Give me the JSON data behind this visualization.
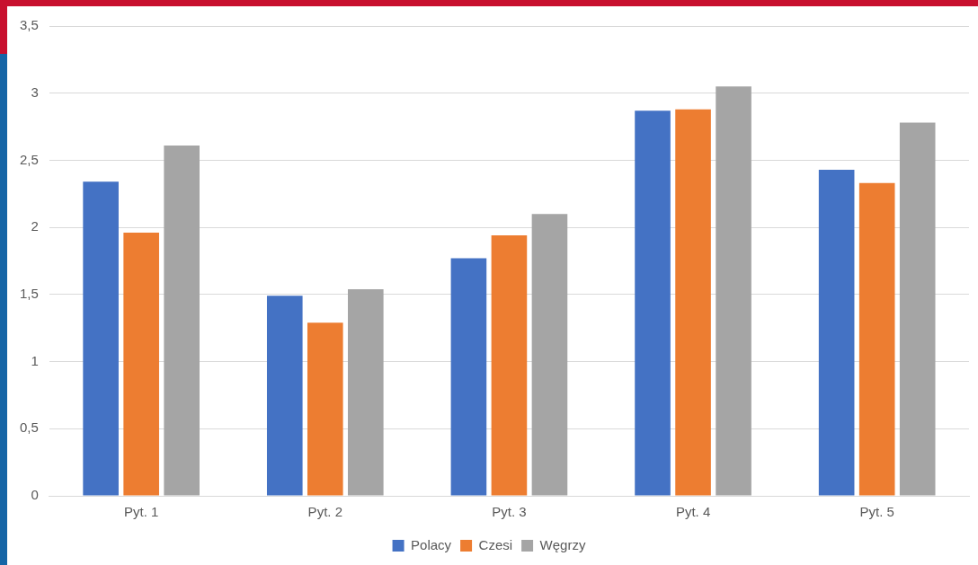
{
  "chart_data": {
    "type": "bar",
    "categories": [
      "Pyt. 1",
      "Pyt. 2",
      "Pyt. 3",
      "Pyt. 4",
      "Pyt. 5"
    ],
    "series": [
      {
        "name": "Polacy",
        "color": "#4472c4",
        "values": [
          2.34,
          1.49,
          1.77,
          2.87,
          2.43
        ]
      },
      {
        "name": "Czesi",
        "color": "#ed7d31",
        "values": [
          1.96,
          1.29,
          1.94,
          2.88,
          2.33
        ]
      },
      {
        "name": "Węgrzy",
        "color": "#a5a5a5",
        "values": [
          2.61,
          1.54,
          2.1,
          3.05,
          2.78
        ]
      }
    ],
    "ylim": [
      0,
      3.5
    ],
    "yticks": [
      0,
      {
        "value": 0.5,
        "label": "0,5"
      },
      1,
      {
        "value": 1.5,
        "label": "1,5"
      },
      2,
      {
        "value": 2.5,
        "label": "2,5"
      },
      3,
      {
        "value": 3.5,
        "label": "3,5"
      }
    ],
    "grid": "y",
    "legend": "bottom"
  }
}
